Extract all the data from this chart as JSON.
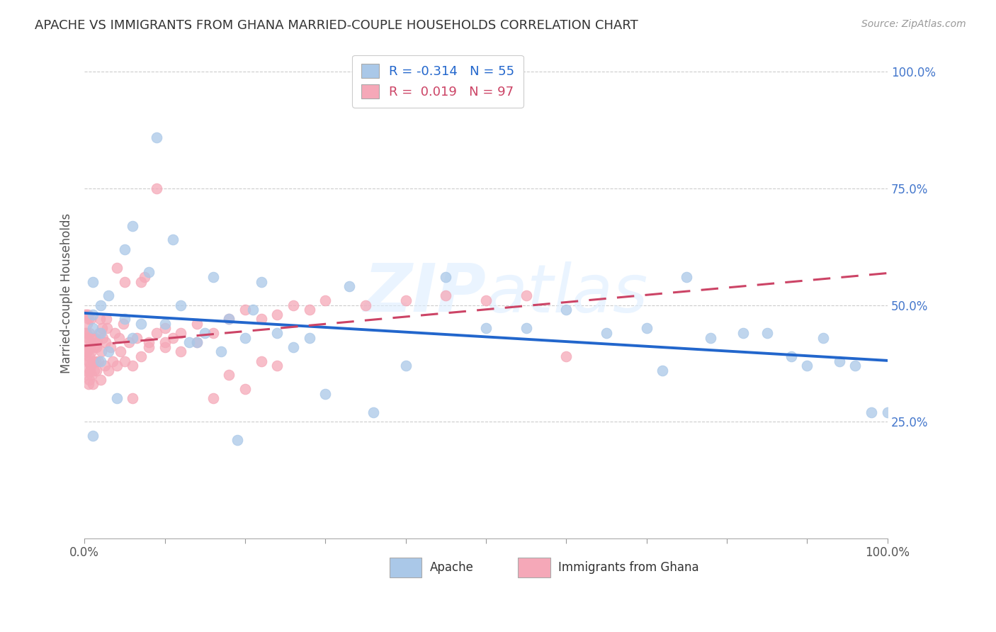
{
  "title": "APACHE VS IMMIGRANTS FROM GHANA MARRIED-COUPLE HOUSEHOLDS CORRELATION CHART",
  "source": "Source: ZipAtlas.com",
  "ylabel": "Married-couple Households",
  "watermark": "ZIPatlas",
  "legend_apache_R": "-0.314",
  "legend_apache_N": "55",
  "legend_ghana_R": "0.019",
  "legend_ghana_N": "97",
  "apache_color": "#aac8e8",
  "ghana_color": "#f5a8b8",
  "apache_line_color": "#2266cc",
  "ghana_line_color": "#cc4466",
  "background_color": "#ffffff",
  "grid_color": "#cccccc",
  "apache_points_x": [
    0.01,
    0.01,
    0.01,
    0.01,
    0.02,
    0.02,
    0.02,
    0.03,
    0.03,
    0.04,
    0.05,
    0.05,
    0.06,
    0.06,
    0.07,
    0.08,
    0.09,
    0.1,
    0.11,
    0.12,
    0.13,
    0.14,
    0.15,
    0.16,
    0.17,
    0.18,
    0.19,
    0.2,
    0.21,
    0.22,
    0.24,
    0.26,
    0.28,
    0.3,
    0.33,
    0.36,
    0.4,
    0.45,
    0.5,
    0.55,
    0.6,
    0.65,
    0.7,
    0.72,
    0.75,
    0.78,
    0.82,
    0.85,
    0.88,
    0.9,
    0.92,
    0.94,
    0.96,
    0.98,
    1.0
  ],
  "apache_points_y": [
    0.22,
    0.45,
    0.48,
    0.55,
    0.38,
    0.44,
    0.5,
    0.4,
    0.52,
    0.3,
    0.47,
    0.62,
    0.43,
    0.67,
    0.46,
    0.57,
    0.86,
    0.46,
    0.64,
    0.5,
    0.42,
    0.42,
    0.44,
    0.56,
    0.4,
    0.47,
    0.21,
    0.43,
    0.49,
    0.55,
    0.44,
    0.41,
    0.43,
    0.31,
    0.54,
    0.27,
    0.37,
    0.56,
    0.45,
    0.45,
    0.49,
    0.44,
    0.45,
    0.36,
    0.56,
    0.43,
    0.44,
    0.44,
    0.39,
    0.37,
    0.43,
    0.38,
    0.37,
    0.27,
    0.27
  ],
  "ghana_points_x": [
    0.001,
    0.001,
    0.001,
    0.002,
    0.002,
    0.002,
    0.002,
    0.003,
    0.003,
    0.003,
    0.004,
    0.004,
    0.004,
    0.005,
    0.005,
    0.005,
    0.005,
    0.006,
    0.006,
    0.006,
    0.007,
    0.007,
    0.008,
    0.008,
    0.008,
    0.009,
    0.009,
    0.01,
    0.01,
    0.01,
    0.012,
    0.012,
    0.013,
    0.014,
    0.015,
    0.015,
    0.016,
    0.017,
    0.018,
    0.019,
    0.02,
    0.021,
    0.022,
    0.023,
    0.025,
    0.026,
    0.027,
    0.028,
    0.03,
    0.032,
    0.035,
    0.038,
    0.04,
    0.043,
    0.045,
    0.048,
    0.05,
    0.055,
    0.06,
    0.065,
    0.07,
    0.075,
    0.08,
    0.09,
    0.1,
    0.11,
    0.12,
    0.14,
    0.16,
    0.18,
    0.2,
    0.22,
    0.24,
    0.26,
    0.28,
    0.3,
    0.35,
    0.4,
    0.45,
    0.5,
    0.55,
    0.6,
    0.16,
    0.18,
    0.2,
    0.22,
    0.24,
    0.1,
    0.12,
    0.14,
    0.04,
    0.05,
    0.06,
    0.07,
    0.08,
    0.09,
    0.1
  ],
  "ghana_points_y": [
    0.4,
    0.44,
    0.48,
    0.36,
    0.4,
    0.44,
    0.48,
    0.35,
    0.4,
    0.46,
    0.38,
    0.43,
    0.48,
    0.33,
    0.38,
    0.42,
    0.47,
    0.34,
    0.39,
    0.44,
    0.36,
    0.41,
    0.37,
    0.42,
    0.47,
    0.35,
    0.4,
    0.33,
    0.38,
    0.43,
    0.36,
    0.41,
    0.43,
    0.38,
    0.36,
    0.41,
    0.42,
    0.38,
    0.44,
    0.47,
    0.34,
    0.4,
    0.45,
    0.43,
    0.37,
    0.42,
    0.47,
    0.45,
    0.36,
    0.41,
    0.38,
    0.44,
    0.37,
    0.43,
    0.4,
    0.46,
    0.38,
    0.42,
    0.37,
    0.43,
    0.39,
    0.56,
    0.41,
    0.44,
    0.41,
    0.43,
    0.4,
    0.42,
    0.44,
    0.47,
    0.49,
    0.47,
    0.48,
    0.5,
    0.49,
    0.51,
    0.5,
    0.51,
    0.52,
    0.51,
    0.52,
    0.39,
    0.3,
    0.35,
    0.32,
    0.38,
    0.37,
    0.45,
    0.44,
    0.46,
    0.58,
    0.55,
    0.3,
    0.55,
    0.42,
    0.75,
    0.42
  ]
}
